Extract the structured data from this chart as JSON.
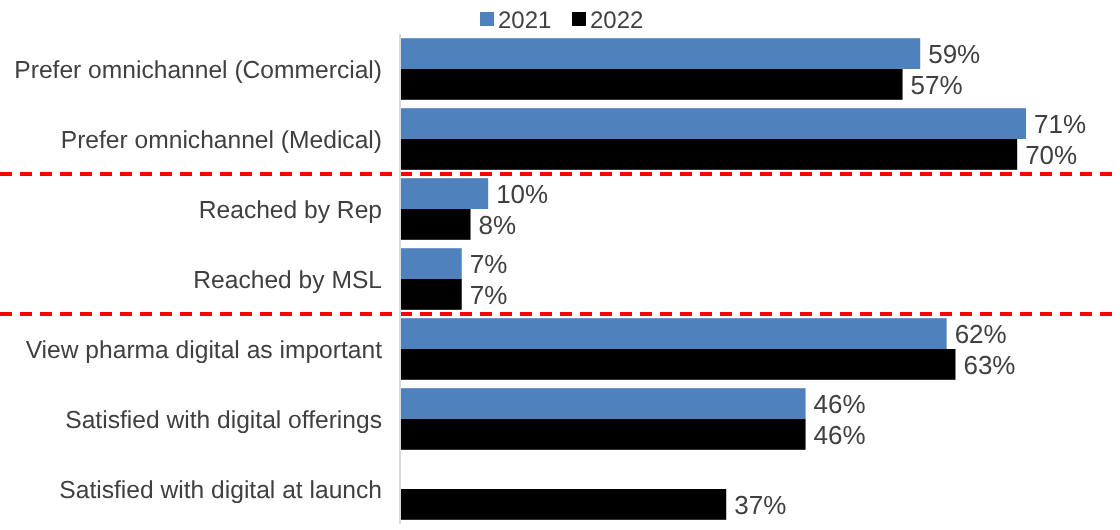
{
  "chart_data": {
    "type": "bar",
    "orientation": "horizontal",
    "categories": [
      "Prefer omnichannel (Commercial)",
      "Prefer omnichannel (Medical)",
      "Reached by Rep",
      "Reached by MSL",
      "View pharma digital as important",
      "Satisfied with digital offerings",
      "Satisfied with digital at launch"
    ],
    "series": [
      {
        "name": "2021",
        "color": "#4f81bd",
        "values": [
          59,
          71,
          10,
          7,
          62,
          46,
          null
        ],
        "value_labels": [
          "59%",
          "71%",
          "10%",
          "7%",
          "62%",
          "46%",
          null
        ]
      },
      {
        "name": "2022",
        "color": "#000000",
        "values": [
          57,
          70,
          8,
          7,
          63,
          46,
          37
        ],
        "value_labels": [
          "57%",
          "70%",
          "8%",
          "7%",
          "63%",
          "46%",
          "37%"
        ]
      }
    ],
    "legend": "top"
  }
}
